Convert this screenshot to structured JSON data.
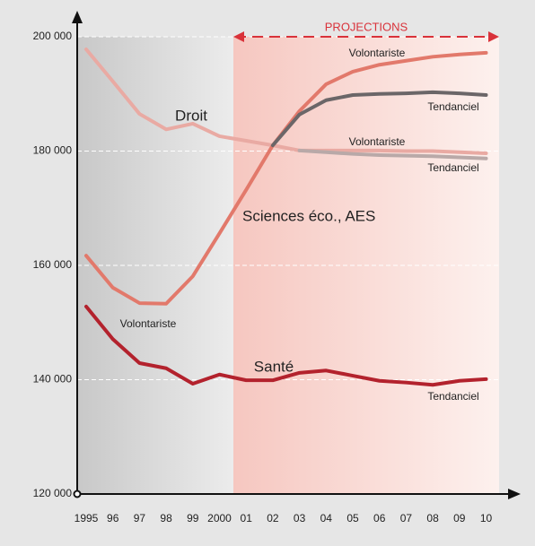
{
  "chart_data": {
    "type": "line",
    "categories": [
      "1995",
      "96",
      "97",
      "98",
      "99",
      "2000",
      "01",
      "02",
      "03",
      "04",
      "05",
      "06",
      "07",
      "08",
      "09",
      "10"
    ],
    "ylim": [
      120000,
      200000
    ],
    "yticks": [
      {
        "value": 120000,
        "label": "120 000"
      },
      {
        "value": 140000,
        "label": "140 000"
      },
      {
        "value": 160000,
        "label": "160 000"
      },
      {
        "value": 180000,
        "label": "180 000"
      },
      {
        "value": 200000,
        "label": "200 000"
      }
    ],
    "grid": true,
    "projection_label": "PROJECTIONS",
    "annotations": [
      "Droit",
      "Sciences éco., AES",
      "Santé",
      "Volontariste"
    ],
    "series": [
      {
        "name": "Volontariste",
        "color": "#e9aaa3",
        "values": [
          197800,
          192200,
          186500,
          183800,
          184800,
          182600,
          181800,
          181000,
          180100,
          180100,
          180100,
          180100,
          180000,
          180000,
          179800,
          179600
        ]
      },
      {
        "name": "Tendanciel",
        "color": "#b9a9a8",
        "values": [
          null,
          null,
          null,
          null,
          null,
          null,
          null,
          null,
          180100,
          179800,
          179500,
          179300,
          179200,
          179100,
          178900,
          178700
        ]
      },
      {
        "name": "Volontariste",
        "color": "#e2796b",
        "values": [
          161700,
          156100,
          153400,
          153300,
          158100,
          165600,
          173200,
          181000,
          187000,
          191700,
          193900,
          195100,
          195800,
          196500,
          196900,
          197200
        ]
      },
      {
        "name": "Tendanciel",
        "color": "#6b6668",
        "values": [
          null,
          null,
          null,
          null,
          null,
          null,
          null,
          181000,
          186400,
          188900,
          189800,
          190000,
          190100,
          190300,
          190100,
          189800
        ]
      },
      {
        "name": "Tendanciel",
        "color": "#b3222d",
        "values": [
          152800,
          147100,
          142900,
          142000,
          139300,
          140900,
          139900,
          139900,
          141200,
          141600,
          140700,
          139800,
          139500,
          139100,
          139800,
          140100
        ]
      }
    ]
  }
}
